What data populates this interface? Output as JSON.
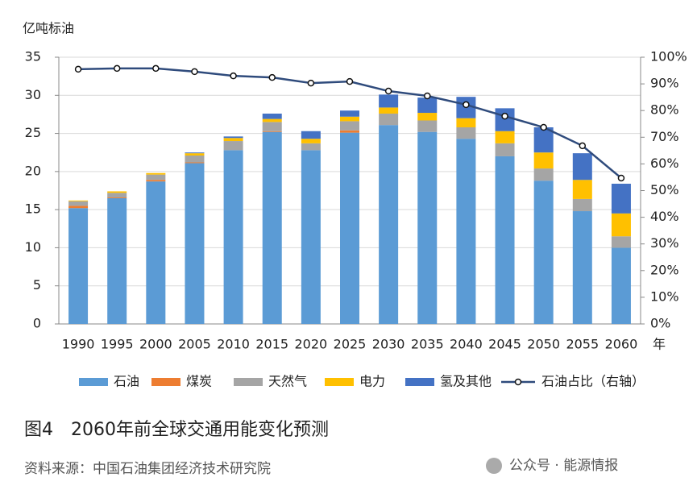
{
  "chart_data": {
    "type": "bar",
    "stacked": true,
    "y_label": "亿吨标油",
    "x_label": "年",
    "categories": [
      "1990",
      "1995",
      "2000",
      "2005",
      "2010",
      "2015",
      "2020",
      "2025",
      "2030",
      "2035",
      "2040",
      "2045",
      "2050",
      "2055",
      "2060"
    ],
    "series": [
      {
        "name": "石油",
        "color": "#5b9bd5",
        "values": [
          15.2,
          16.5,
          18.7,
          21.1,
          22.8,
          25.2,
          22.8,
          25.1,
          26.1,
          25.2,
          24.3,
          22.0,
          18.8,
          14.8,
          10.0
        ]
      },
      {
        "name": "煤炭",
        "color": "#ed7d31",
        "values": [
          0.3,
          0.1,
          0.2,
          0.1,
          0,
          0.1,
          0,
          0.3,
          0,
          0,
          0,
          0,
          0,
          0,
          0
        ]
      },
      {
        "name": "天然气",
        "color": "#a5a5a5",
        "values": [
          0.6,
          0.6,
          0.7,
          0.9,
          1.2,
          1.2,
          0.9,
          1.2,
          1.5,
          1.5,
          1.5,
          1.7,
          1.6,
          1.6,
          1.5
        ]
      },
      {
        "name": "电力",
        "color": "#ffc000",
        "values": [
          0.1,
          0.2,
          0.2,
          0.3,
          0.4,
          0.4,
          0.6,
          0.6,
          0.8,
          1.0,
          1.2,
          1.6,
          2.1,
          2.5,
          3.0
        ]
      },
      {
        "name": "氢及其他",
        "color": "#4472c4",
        "values": [
          0,
          0,
          0,
          0.1,
          0.2,
          0.7,
          1.0,
          0.8,
          1.7,
          2.0,
          2.8,
          3.0,
          3.3,
          3.5,
          3.9
        ]
      },
      {
        "name": "石油占比（右轴）",
        "type": "line",
        "axis": "y2",
        "color": "#2f4b7c",
        "values": [
          95.5,
          95.8,
          95.8,
          94.6,
          93.0,
          92.4,
          90.3,
          90.9,
          87.3,
          85.5,
          82.2,
          77.9,
          73.7,
          66.8,
          54.7
        ]
      }
    ],
    "ylim": [
      0,
      35
    ],
    "yticks": [
      0,
      5,
      10,
      15,
      20,
      25,
      30,
      35
    ],
    "y2lim": [
      0,
      100
    ],
    "y2ticks": [
      {
        "value": 0,
        "label": "0%"
      },
      {
        "value": 10,
        "label": "10%"
      },
      {
        "value": 20,
        "label": "20%"
      },
      {
        "value": 30,
        "label": "30%"
      },
      {
        "value": 40,
        "label": "40%"
      },
      {
        "value": 50,
        "label": "50%"
      },
      {
        "value": 60,
        "label": "60%"
      },
      {
        "value": 70,
        "label": "70%"
      },
      {
        "value": 80,
        "label": "80%"
      },
      {
        "value": 90,
        "label": "90%"
      },
      {
        "value": 100,
        "label": "100%"
      }
    ],
    "grid": true
  },
  "caption": "图4　2060年前全球交通用能变化预测",
  "source": "资料来源：中国石油集团经济技术研究院",
  "watermark": "公众号 · 能源情报"
}
